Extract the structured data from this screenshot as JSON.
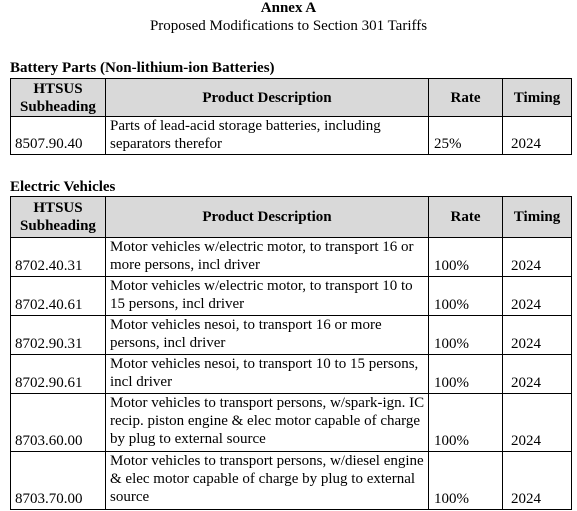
{
  "annex": {
    "title": "Annex A",
    "subtitle": "Proposed Modifications to Section 301 Tariffs"
  },
  "columns": {
    "hts_line1": "HTSUS",
    "hts_line2": "Subheading",
    "description": "Product Description",
    "rate": "Rate",
    "timing": "Timing"
  },
  "battery": {
    "title": "Battery Parts (Non-lithium-ion Batteries)",
    "rows": [
      {
        "hts": "8507.90.40",
        "desc": "Parts of lead-acid storage batteries, including separators therefor",
        "rate": "25%",
        "timing": "2024"
      }
    ]
  },
  "ev": {
    "title": "Electric Vehicles",
    "rows": [
      {
        "hts": "8702.40.31",
        "desc": "Motor vehicles w/electric motor, to transport 16 or more persons, incl driver",
        "rate": "100%",
        "timing": "2024"
      },
      {
        "hts": "8702.40.61",
        "desc": "Motor vehicles w/electric motor, to transport 10 to 15 persons, incl driver",
        "rate": "100%",
        "timing": "2024"
      },
      {
        "hts": "8702.90.31",
        "desc": "Motor vehicles nesoi, to transport 16 or more persons, incl driver",
        "rate": "100%",
        "timing": "2024"
      },
      {
        "hts": "8702.90.61",
        "desc": "Motor vehicles nesoi, to transport 10 to 15 persons, incl driver",
        "rate": "100%",
        "timing": "2024"
      },
      {
        "hts": "8703.60.00",
        "desc": "Motor vehicles to transport persons, w/spark-ign. IC recip. piston engine & elec motor capable of charge by plug to external source",
        "rate": "100%",
        "timing": "2024"
      },
      {
        "hts": "8703.70.00",
        "desc": "Motor vehicles to transport persons, w/diesel engine & elec motor capable of charge by plug to external source",
        "rate": "100%",
        "timing": "2024"
      }
    ]
  }
}
